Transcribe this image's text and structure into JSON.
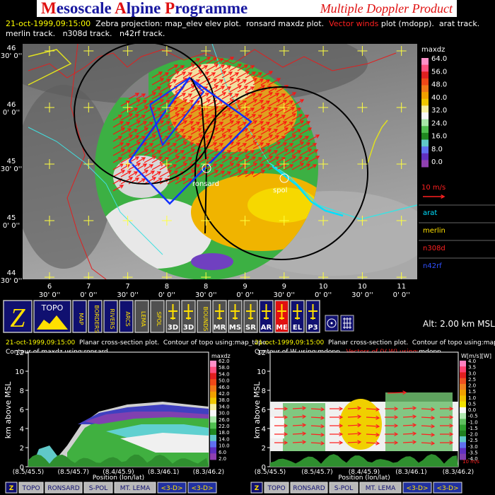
{
  "header": {
    "title": "Mesoscale Alpine Programme",
    "subtitle": "Multiple Doppler Product"
  },
  "map_info": [
    {
      "line": 0,
      "text": "21-oct-1999,09:15:00",
      "color": "#ffff00"
    },
    {
      "line": 0,
      "text": "  Zebra projection: map_elev elev plot.  ronsard maxdz plot.  ",
      "color": "#ffffff"
    },
    {
      "line": 0,
      "text": "Vector winds",
      "color": "#ff2020"
    },
    {
      "line": 0,
      "text": " plot (mdopp).  arat track.",
      "color": "#ffffff"
    },
    {
      "line": 1,
      "text": "merlin track.   n308d track.   n42rf track.",
      "color": "#ffffff"
    }
  ],
  "map": {
    "lat_labels": [
      {
        "deg": "46",
        "min": "30' 0''"
      },
      {
        "deg": "46",
        "min": "0' 0''"
      },
      {
        "deg": "45",
        "min": "30' 0''"
      },
      {
        "deg": "45",
        "min": "0' 0''"
      },
      {
        "deg": "44",
        "min": "30' 0''"
      }
    ],
    "lon_labels": [
      {
        "deg": "6",
        "min": "30' 0''"
      },
      {
        "deg": "7",
        "min": "0' 0''"
      },
      {
        "deg": "7",
        "min": "30' 0''"
      },
      {
        "deg": "8",
        "min": "0' 0''"
      },
      {
        "deg": "8",
        "min": "30' 0''"
      },
      {
        "deg": "9",
        "min": "0' 0''"
      },
      {
        "deg": "9",
        "min": "30' 0''"
      },
      {
        "deg": "10",
        "min": "0' 0''"
      },
      {
        "deg": "10",
        "min": "30' 0''"
      },
      {
        "deg": "11",
        "min": "0' 0''"
      }
    ],
    "colorbar": {
      "title": "maxdz",
      "labels": [
        "64.0",
        "56.0",
        "48.0",
        "40.0",
        "32.0",
        "24.0",
        "16.0",
        "8.0",
        "0.0"
      ]
    },
    "vector_scale": "10 m/s",
    "sites": [
      "ronsard",
      "spol"
    ],
    "tracks": [
      {
        "name": "arat",
        "color": "#00e0ff"
      },
      {
        "name": "merlin",
        "color": "#ffe000"
      },
      {
        "name": "n308d",
        "color": "#ff2020"
      },
      {
        "name": "n42rf",
        "color": "#3050ff"
      }
    ]
  },
  "toolbar": {
    "buttons": [
      {
        "label": "Z",
        "bg": "#101070"
      },
      {
        "label": "TOPO",
        "bg": "#101070"
      },
      {
        "label": "MAP",
        "bg": "#101070"
      },
      {
        "label": "BORDERS",
        "bg": "#101070"
      },
      {
        "label": "RIVERS",
        "bg": "#101070"
      },
      {
        "label": "ARCS",
        "bg": "#101070"
      },
      {
        "label": "LEMA",
        "bg": "#505050"
      },
      {
        "label": "SPOL",
        "bg": "#505050"
      },
      {
        "label": "3D",
        "bg": "#505050"
      },
      {
        "label": "3D",
        "bg": "#505050"
      },
      {
        "label": "BOUNDS",
        "bg": "#505050"
      },
      {
        "label": "MR",
        "bg": "#505050"
      },
      {
        "label": "MS",
        "bg": "#505050"
      },
      {
        "label": "SR",
        "bg": "#505050"
      },
      {
        "label": "AR",
        "bg": "#101070"
      },
      {
        "label": "ME",
        "bg": "#e01010"
      },
      {
        "label": "EL",
        "bg": "#101070"
      },
      {
        "label": "P3",
        "bg": "#101070"
      }
    ],
    "altitude": "Alt: 2.00 km MSL"
  },
  "panels": [
    {
      "info": [
        {
          "line": 0,
          "text": "21-oct-1999,09:15:00",
          "color": "#ffff00"
        },
        {
          "line": 0,
          "text": "  Planar cross-section plot.  Contour of topo using:map_topo.",
          "color": "#ffffff"
        },
        {
          "line": 1,
          "text": "Contour of maxdz using:ronsard.",
          "color": "#ffffff"
        }
      ],
      "ylabel": "km above MSL",
      "ylim": [
        0,
        12
      ],
      "yticks": [
        0,
        2,
        4,
        6,
        8,
        10,
        12
      ],
      "xlabels": [
        "(8.5/45.5)",
        "(8.5/45.7)",
        "(8.4/45.9)",
        "(8.3/46.1)",
        "(8.3/46.2)"
      ],
      "xlabel": "Position (lon/lat)",
      "colorbar": {
        "title": "maxdz",
        "labels": [
          "62.0",
          "58.0",
          "54.0",
          "50.0",
          "46.0",
          "42.0",
          "38.0",
          "34.0",
          "30.0",
          "26.0",
          "22.0",
          "18.0",
          "14.0",
          "10.0",
          "6.0",
          "2.0"
        ]
      },
      "buttons": [
        "Z",
        "TOPO",
        "RONSARD",
        "S-POL",
        "MT. LEMA",
        "<3-D>",
        "<3-D>"
      ]
    },
    {
      "info": [
        {
          "line": 0,
          "text": "21-oct-1999,09:15:00",
          "color": "#ffff00"
        },
        {
          "line": 0,
          "text": "  Planar cross-section plot.  Contour of topo using:map_topo.",
          "color": "#ffffff"
        },
        {
          "line": 1,
          "text": "Contour of W using:mdopp.  ",
          "color": "#ffffff"
        },
        {
          "line": 1,
          "text": "Vectors of (V,W) using:",
          "color": "#ff2020"
        },
        {
          "line": 1,
          "text": "mdopp.",
          "color": "#ffffff"
        }
      ],
      "ylabel": "km above MSL",
      "ylim": [
        0,
        12
      ],
      "yticks": [
        0,
        2,
        4,
        6,
        8,
        10,
        12
      ],
      "xlabels": [
        "(8.5/45.5)",
        "(8.5/45.7)",
        "(8.4/45.9)",
        "(8.3/46.1)",
        "(8.3/46.2)"
      ],
      "xlabel": "Position (lon/lat)",
      "colorbar": {
        "title": "W[m/s][W]",
        "labels": [
          "4.0",
          "3.5",
          "3.0",
          "2.5",
          "2.0",
          "1.5",
          "1.0",
          "0.5",
          "0.0",
          "-0.5",
          "-1.0",
          "-1.5",
          "-2.0",
          "-2.5",
          "-3.0",
          "-3.5",
          "-4.0"
        ]
      },
      "vector_scale": "10 m/s",
      "buttons": [
        "Z",
        "TOPO",
        "RONSARD",
        "S-POL",
        "MT. LEMA",
        "<3-D>",
        "<3-D>"
      ]
    }
  ]
}
